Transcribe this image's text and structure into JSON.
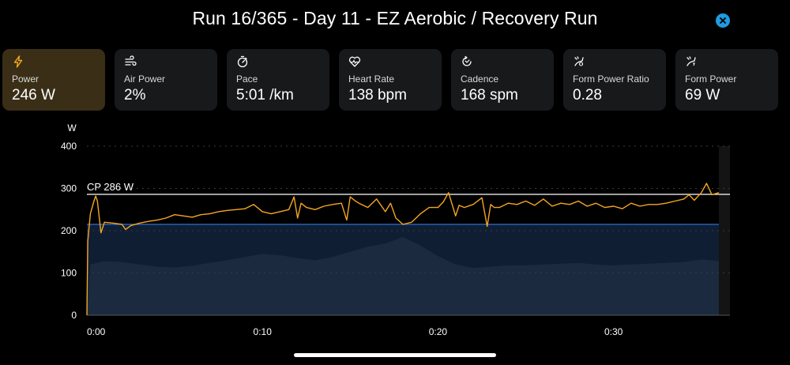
{
  "title": "Run 16/365 - Day 11 - EZ Aerobic / Recovery Run",
  "accent_color": "#1f9bde",
  "metrics": [
    {
      "icon": "lightning-bolt-icon",
      "label": "Power",
      "value": "246 W",
      "active": true
    },
    {
      "icon": "wind-icon",
      "label": "Air Power",
      "value": "2%"
    },
    {
      "icon": "stopwatch-icon",
      "label": "Pace",
      "value": "5:01 /km"
    },
    {
      "icon": "heart-rate-icon",
      "label": "Heart Rate",
      "value": "138 bpm"
    },
    {
      "icon": "cadence-icon",
      "label": "Cadence",
      "value": "168 spm"
    },
    {
      "icon": "form-power-ratio-icon",
      "label": "Form Power Ratio",
      "value": "0.28"
    },
    {
      "icon": "form-power-icon",
      "label": "Form Power",
      "value": "69 W"
    }
  ],
  "chart_data": {
    "type": "line",
    "ylabel": "W",
    "ylim": [
      0,
      400
    ],
    "yticks": [
      "400",
      "300",
      "200",
      "100",
      "0"
    ],
    "ytick_values": [
      400,
      300,
      200,
      100,
      0
    ],
    "xlim_minutes": [
      0,
      36
    ],
    "xticks": [
      "0:00",
      "0:10",
      "0:20",
      "0:30"
    ],
    "xtick_values_minutes": [
      0,
      10,
      20,
      30
    ],
    "reference_lines": [
      {
        "name": "CP 286 W",
        "value": 286,
        "color": "#ffffff"
      },
      {
        "name": "",
        "value": 215,
        "color": "#2f6fd6"
      }
    ],
    "series": [
      {
        "color": "#f5a623",
        "x": [
          0,
          0.05,
          0.2,
          0.4,
          0.5,
          0.6,
          0.8,
          1,
          1.5,
          2,
          2.2,
          2.5,
          3,
          3.5,
          4,
          4.5,
          5,
          5.5,
          6,
          6.5,
          7,
          7.5,
          8,
          8.5,
          9,
          9.5,
          10,
          10.5,
          11,
          11.5,
          11.8,
          12,
          12.2,
          12.5,
          13,
          13.5,
          14,
          14.5,
          14.8,
          15,
          15.3,
          15.5,
          16,
          16.5,
          17,
          17.3,
          17.6,
          18,
          18.5,
          19,
          19.5,
          20,
          20.3,
          20.6,
          21,
          21.2,
          21.5,
          22,
          22.5,
          22.8,
          23,
          23.2,
          23.5,
          24,
          24.5,
          25,
          25.5,
          26,
          26.5,
          27,
          27.5,
          28,
          28.5,
          29,
          29.5,
          30,
          30.5,
          31,
          31.5,
          32,
          32.5,
          33,
          33.5,
          34,
          34.3,
          34.6,
          35,
          35.3,
          35.6,
          36
        ],
        "values": [
          0,
          175,
          240,
          270,
          282,
          270,
          195,
          220,
          218,
          215,
          203,
          212,
          218,
          222,
          225,
          230,
          238,
          235,
          232,
          238,
          240,
          245,
          248,
          250,
          252,
          262,
          245,
          240,
          245,
          250,
          280,
          230,
          265,
          255,
          250,
          258,
          262,
          265,
          225,
          280,
          270,
          265,
          255,
          275,
          245,
          265,
          230,
          215,
          220,
          240,
          255,
          255,
          268,
          290,
          235,
          260,
          255,
          262,
          278,
          210,
          262,
          255,
          255,
          265,
          262,
          270,
          260,
          275,
          258,
          265,
          262,
          270,
          258,
          265,
          255,
          258,
          252,
          265,
          258,
          262,
          262,
          265,
          270,
          275,
          285,
          272,
          290,
          312,
          285,
          290
        ]
      },
      {
        "type": "area",
        "color": "#1b2a3f",
        "x": [
          0,
          0.2,
          1,
          2,
          3,
          4,
          5,
          6,
          7,
          8,
          9,
          10,
          11,
          12,
          13,
          14,
          15,
          16,
          17,
          18,
          19,
          20,
          21,
          22,
          23,
          24,
          25,
          26,
          27,
          28,
          29,
          30,
          31,
          32,
          33,
          34,
          35,
          36
        ],
        "values": [
          0,
          120,
          128,
          126,
          120,
          115,
          113,
          117,
          124,
          130,
          138,
          145,
          142,
          135,
          130,
          138,
          150,
          162,
          170,
          185,
          165,
          140,
          120,
          112,
          115,
          118,
          118,
          120,
          122,
          124,
          120,
          118,
          120,
          122,
          124,
          126,
          132,
          128
        ]
      }
    ]
  }
}
